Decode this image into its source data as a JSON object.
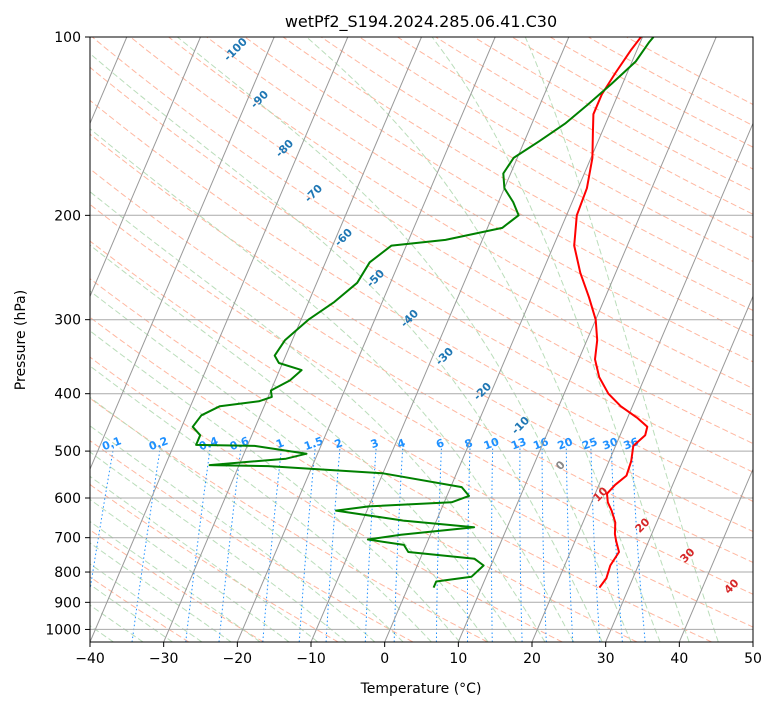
{
  "chart_data": {
    "type": "line",
    "title": "wetPf2_S194.2024.285.06.41.C30",
    "xlabel": "Temperature (°C)",
    "ylabel": "Pressure (hPa)",
    "xlim": [
      -40,
      50
    ],
    "ylim": [
      1050,
      100
    ],
    "y_scale": "log",
    "grid": true,
    "x_ticks": [
      -40,
      -30,
      -20,
      -10,
      0,
      10,
      20,
      30,
      40,
      50
    ],
    "y_ticks": [
      100,
      200,
      300,
      400,
      500,
      600,
      700,
      800,
      900,
      1000
    ],
    "colors": {
      "temperature": "#ff0000",
      "dewpoint": "#008000",
      "isotherms": "#999999",
      "dry_adiabats": "#ff9f80",
      "moist_adiabats": "#b3d9b3",
      "mixing_ratio": "#1e90ff",
      "dry_adiabat_labels": "#d62728",
      "moist_adiabat_labels": "#1f77b4",
      "freezing_label": "#888888"
    },
    "series": [
      {
        "key": "temperature",
        "points": [
          [
            26.0,
            850
          ],
          [
            26.4,
            820
          ],
          [
            26.2,
            780
          ],
          [
            26.6,
            740
          ],
          [
            25.6,
            710
          ],
          [
            25.0,
            690
          ],
          [
            24.4,
            660
          ],
          [
            23.2,
            630
          ],
          [
            22.2,
            610
          ],
          [
            21.6,
            590
          ],
          [
            22.2,
            570
          ],
          [
            23.2,
            550
          ],
          [
            23.0,
            520
          ],
          [
            22.4,
            490
          ],
          [
            23.4,
            470
          ],
          [
            23.2,
            455
          ],
          [
            21.4,
            440
          ],
          [
            18.4,
            420
          ],
          [
            16.0,
            400
          ],
          [
            13.8,
            375
          ],
          [
            12.2,
            350
          ],
          [
            11.4,
            325
          ],
          [
            10.0,
            300
          ],
          [
            7.8,
            275
          ],
          [
            5.2,
            250
          ],
          [
            2.8,
            225
          ],
          [
            1.4,
            200
          ],
          [
            1.2,
            180
          ],
          [
            0.2,
            160
          ],
          [
            -1.2,
            145
          ],
          [
            -2.2,
            135
          ],
          [
            -2.2,
            125
          ],
          [
            -1.6,
            115
          ],
          [
            -0.8,
            105
          ],
          [
            -0.2,
            100
          ]
        ]
      },
      {
        "key": "dewpoint",
        "points": [
          [
            3.5,
            850
          ],
          [
            3.5,
            830
          ],
          [
            8.0,
            815
          ],
          [
            9.0,
            780
          ],
          [
            7.4,
            760
          ],
          [
            -2.0,
            740
          ],
          [
            -3.0,
            720
          ],
          [
            -8.2,
            705
          ],
          [
            -4.0,
            692
          ],
          [
            5.5,
            672
          ],
          [
            -4.5,
            655
          ],
          [
            -14.2,
            630
          ],
          [
            -10.0,
            620
          ],
          [
            1.0,
            610
          ],
          [
            3.0,
            595
          ],
          [
            1.5,
            575
          ],
          [
            -10.0,
            545
          ],
          [
            -26.0,
            530
          ],
          [
            -34.0,
            528
          ],
          [
            -24.0,
            515
          ],
          [
            -21.5,
            505
          ],
          [
            -29.0,
            490
          ],
          [
            -37.0,
            488
          ],
          [
            -37.0,
            470
          ],
          [
            -38.5,
            455
          ],
          [
            -38.0,
            435
          ],
          [
            -36.0,
            420
          ],
          [
            -31.0,
            412
          ],
          [
            -29.5,
            405
          ],
          [
            -30.0,
            395
          ],
          [
            -28.0,
            380
          ],
          [
            -27.0,
            365
          ],
          [
            -30.5,
            355
          ],
          [
            -31.5,
            345
          ],
          [
            -31.0,
            325
          ],
          [
            -29.0,
            300
          ],
          [
            -26.5,
            280
          ],
          [
            -24.5,
            260
          ],
          [
            -24.0,
            240
          ],
          [
            -22.0,
            225
          ],
          [
            -15.0,
            220
          ],
          [
            -8.0,
            210
          ],
          [
            -6.5,
            200
          ],
          [
            -8.0,
            190
          ],
          [
            -10.0,
            180
          ],
          [
            -11.0,
            170
          ],
          [
            -10.5,
            160
          ],
          [
            -8.0,
            150
          ],
          [
            -5.5,
            140
          ],
          [
            -3.5,
            130
          ],
          [
            -1.5,
            120
          ],
          [
            0.5,
            110
          ],
          [
            1.2,
            102
          ],
          [
            1.5,
            100
          ]
        ]
      }
    ],
    "dry_adiabat_labels": [
      "10",
      "20",
      "30",
      "40"
    ],
    "moist_adiabat_labels": [
      "-100",
      "-90",
      "-80",
      "-70",
      "-60",
      "-50",
      "-40",
      "-30",
      "-20",
      "-10"
    ],
    "mixing_ratio_labels": [
      "0.1",
      "0.2",
      "0.4",
      "0.6",
      "1",
      "1.5",
      "2",
      "3",
      "4",
      "6",
      "8",
      "10",
      "13",
      "16",
      "20",
      "25",
      "30",
      "36"
    ],
    "freezing_label": "0"
  }
}
